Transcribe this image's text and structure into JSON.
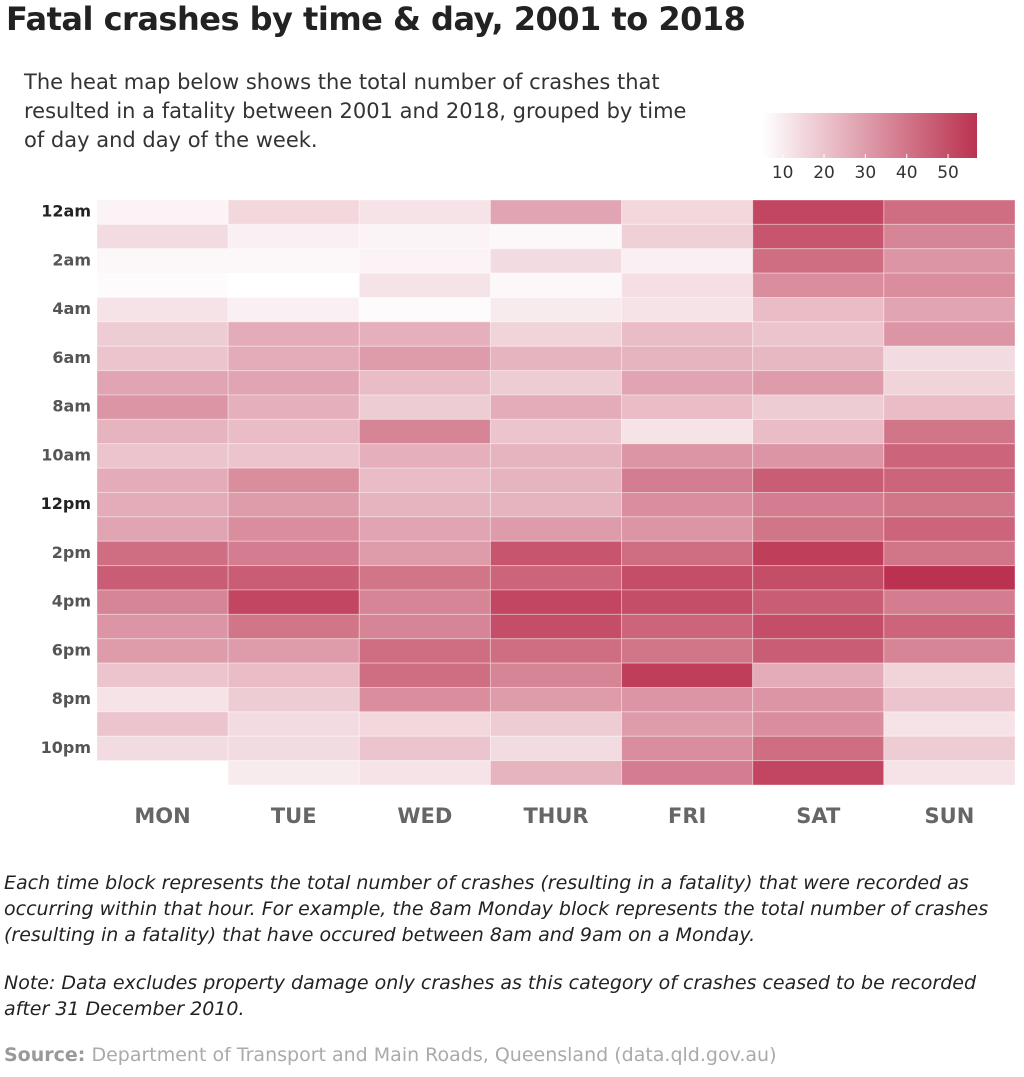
{
  "chart_data": {
    "type": "heatmap",
    "title": "Fatal crashes by time & day, 2001 to 2018",
    "subtitle": "The heat map below shows the total number of crashes that resulted in a fatality between 2001 and 2018, grouped by time of day and day of the week.",
    "x": [
      "MON",
      "TUE",
      "WED",
      "THUR",
      "FRI",
      "SAT",
      "SUN"
    ],
    "y": [
      "12am",
      null,
      "2am",
      null,
      "4am",
      null,
      "6am",
      null,
      "8am",
      null,
      "10am",
      null,
      "12pm",
      null,
      "2pm",
      null,
      "4pm",
      null,
      "6pm",
      null,
      "8pm",
      null,
      "10pm",
      null
    ],
    "bold_y": [
      0,
      12
    ],
    "values": [
      [
        8,
        14,
        7,
        6,
        12,
        18,
        20,
        28,
        32,
        24,
        20,
        26,
        26,
        28,
        42,
        46,
        36,
        32,
        30,
        20,
        12,
        20,
        14,
        null
      ],
      [
        15,
        9,
        7,
        5,
        9,
        26,
        26,
        28,
        25,
        22,
        20,
        34,
        30,
        34,
        38,
        46,
        52,
        40,
        30,
        22,
        18,
        14,
        14,
        10
      ],
      [
        12,
        8,
        8,
        12,
        6,
        25,
        30,
        22,
        18,
        36,
        25,
        22,
        24,
        28,
        30,
        40,
        36,
        36,
        42,
        42,
        34,
        15,
        20,
        12
      ],
      [
        28,
        7,
        14,
        7,
        10,
        16,
        24,
        18,
        26,
        20,
        24,
        24,
        24,
        30,
        48,
        44,
        52,
        50,
        42,
        36,
        30,
        18,
        14,
        24
      ],
      [
        15,
        17,
        9,
        13,
        12,
        22,
        24,
        28,
        22,
        12,
        32,
        38,
        34,
        32,
        42,
        50,
        50,
        44,
        40,
        54,
        32,
        30,
        34,
        38
      ],
      [
        52,
        48,
        42,
        34,
        22,
        20,
        23,
        30,
        18,
        22,
        32,
        46,
        38,
        40,
        54,
        50,
        46,
        50,
        46,
        26,
        32,
        34,
        42,
        52
      ],
      [
        42,
        36,
        32,
        34,
        28,
        32,
        14,
        16,
        22,
        40,
        44,
        44,
        40,
        44,
        40,
        57,
        38,
        44,
        36,
        16,
        20,
        12,
        18,
        12
      ]
    ],
    "clim": [
      5,
      57
    ],
    "cticks": [
      10,
      20,
      30,
      40,
      50
    ],
    "color_scale": [
      "#ffffff",
      "#bb3250"
    ],
    "notes": [
      "Each time block represents the total number of crashes (resulting in a fatality) that were recorded as occurring within that hour. For example, the 8am Monday block represents the total number of crashes (resulting in a fatality) that have occured between 8am and 9am on a Monday.",
      "Note: Data excludes property damage only crashes as this category of crashes ceased to be recorded after 31 December 2010."
    ],
    "source": {
      "label": "Source:",
      "text": "Department of Transport and Main Roads, Queensland (data.qld.gov.au)"
    }
  }
}
